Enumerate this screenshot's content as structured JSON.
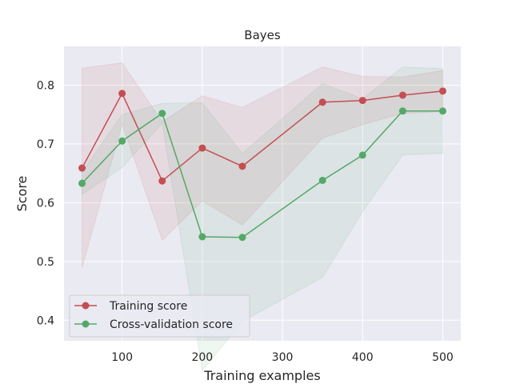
{
  "chart_data": {
    "type": "line",
    "title": "Bayes",
    "xlabel": "Training examples",
    "ylabel": "Score",
    "xlim": [
      27.5,
      522.5
    ],
    "ylim": [
      0.365,
      0.866
    ],
    "xticks": [
      100,
      200,
      300,
      400,
      500
    ],
    "yticks": [
      0.4,
      0.5,
      0.6,
      0.7,
      0.8
    ],
    "grid": true,
    "legend_position": "lower-left",
    "background": "#eaeaf2",
    "x": [
      50,
      100,
      150,
      200,
      250,
      350,
      400,
      450,
      500
    ],
    "series": [
      {
        "name": "Training score",
        "color": "#c44e52",
        "values": [
          0.659,
          0.786,
          0.637,
          0.693,
          0.662,
          0.771,
          0.774,
          0.783,
          0.79
        ],
        "band_lower": [
          0.489,
          0.734,
          0.536,
          0.603,
          0.562,
          0.71,
          0.733,
          0.752,
          0.755
        ],
        "band_upper": [
          0.829,
          0.838,
          0.738,
          0.782,
          0.762,
          0.831,
          0.815,
          0.814,
          0.825
        ]
      },
      {
        "name": "Cross-validation score",
        "color": "#55a868",
        "values": [
          0.633,
          0.705,
          0.752,
          0.542,
          0.541,
          0.638,
          0.681,
          0.756,
          0.756
        ],
        "band_lower": [
          0.614,
          0.66,
          0.735,
          0.314,
          0.398,
          0.473,
          0.585,
          0.681,
          0.684
        ],
        "band_upper": [
          0.652,
          0.75,
          0.769,
          0.77,
          0.684,
          0.803,
          0.777,
          0.831,
          0.828
        ]
      }
    ]
  }
}
